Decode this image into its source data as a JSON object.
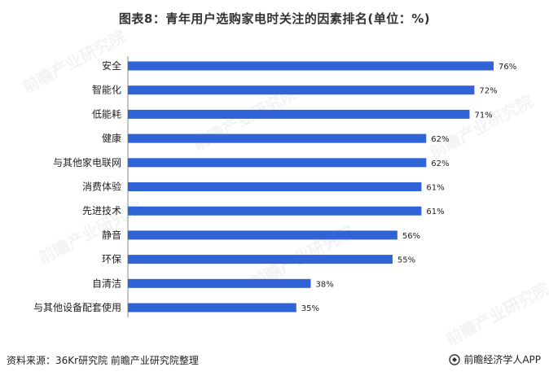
{
  "title": "图表8：青年用户选购家电时关注的因素排名(单位：%)",
  "watermark": "前瞻产业研究院",
  "footer": {
    "source": "资料来源：36Kr研究院 前瞻产业研究院整理",
    "brand": "前瞻经济学人APP"
  },
  "colors": {
    "bar": "#2f63d6",
    "text": "#222222"
  },
  "chart_data": {
    "type": "bar",
    "orientation": "horizontal",
    "categories": [
      "安全",
      "智能化",
      "低能耗",
      "健康",
      "与其他家电联网",
      "消费体验",
      "先进技术",
      "静音",
      "环保",
      "自清洁",
      "与其他设备配套使用"
    ],
    "values": [
      76,
      72,
      71,
      62,
      62,
      61,
      61,
      56,
      55,
      38,
      35
    ],
    "value_labels": [
      "76%",
      "72%",
      "71%",
      "62%",
      "62%",
      "61%",
      "61%",
      "56%",
      "55%",
      "38%",
      "35%"
    ],
    "xlim": [
      0,
      80
    ],
    "grid": false
  }
}
